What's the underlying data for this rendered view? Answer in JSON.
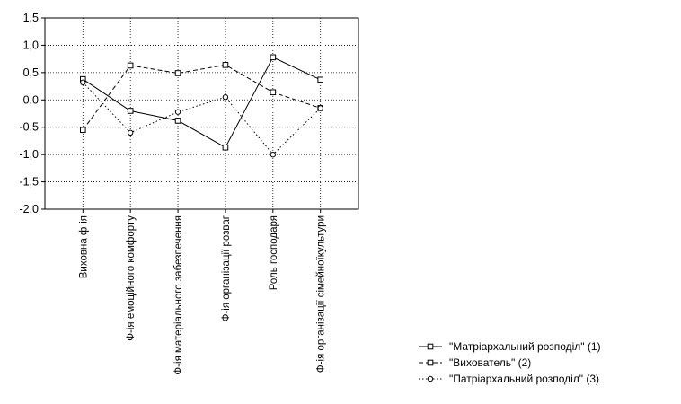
{
  "chart_data": {
    "type": "line",
    "categories": [
      "Виховна ф-ія",
      "Ф-ія емоційного комфорту",
      "Ф-ія матеріального забезпечення",
      "Ф-ія організації розваг",
      "Роль господаря",
      "Ф-ія організації сімейноїкультури"
    ],
    "series": [
      {
        "name": "\"Матріархальний розподіл\" (1)",
        "values": [
          0.38,
          -0.2,
          -0.38,
          -0.87,
          0.78,
          0.37
        ],
        "line_style": "solid",
        "marker": "square",
        "color": "#000000"
      },
      {
        "name": "\"Вихователь\" (2)",
        "values": [
          -0.55,
          0.63,
          0.49,
          0.64,
          0.14,
          -0.15
        ],
        "line_style": "dashed",
        "marker": "square",
        "color": "#000000"
      },
      {
        "name": "\"Патріархальний розподіл\" (3)",
        "values": [
          0.32,
          -0.6,
          -0.22,
          0.05,
          -1.0,
          -0.15
        ],
        "line_style": "dotted",
        "marker": "circle",
        "color": "#000000"
      }
    ],
    "yticks": [
      "1,5",
      "1,0",
      "0,5",
      "0,0",
      "-0,5",
      "-1,0",
      "-1,5",
      "-2,0"
    ],
    "ylim": [
      -2.0,
      1.5
    ],
    "grid": true,
    "legend_position": "bottom-right"
  }
}
